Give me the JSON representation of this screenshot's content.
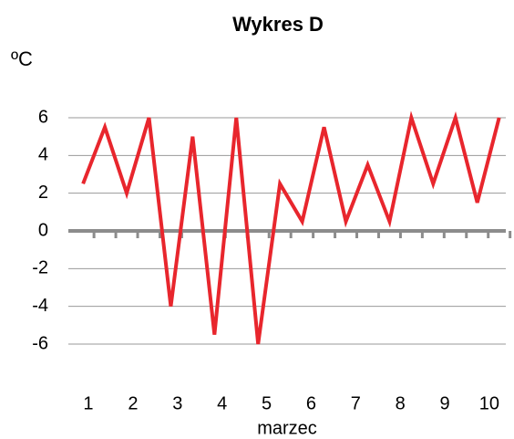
{
  "chart_data": {
    "type": "line",
    "title": "Wykres D",
    "y_label": "ºC",
    "x_label": "marzec",
    "x": [
      0.88,
      1.37,
      1.86,
      2.36,
      2.85,
      3.34,
      3.83,
      4.32,
      4.81,
      5.3,
      5.8,
      6.29,
      6.78,
      7.27,
      7.76,
      8.25,
      8.74,
      9.24,
      9.73,
      10.22
    ],
    "series": [
      {
        "name": "Wykres D",
        "color": "#e8262d",
        "values": [
          2.5,
          5.5,
          2,
          6,
          -4,
          5,
          -5.5,
          6,
          -6,
          2.5,
          0.5,
          5.5,
          0.5,
          3.5,
          0.5,
          6,
          2.5,
          6,
          1.5,
          6
        ]
      }
    ],
    "xlim": [
      0.55,
      10.37
    ],
    "xticks": [
      1,
      2,
      3,
      4,
      5,
      6,
      7,
      8,
      9,
      10
    ],
    "ylim": [
      -6,
      6
    ],
    "yticks": [
      -6,
      -4,
      -2,
      0,
      2,
      4,
      6
    ],
    "grid": true
  }
}
